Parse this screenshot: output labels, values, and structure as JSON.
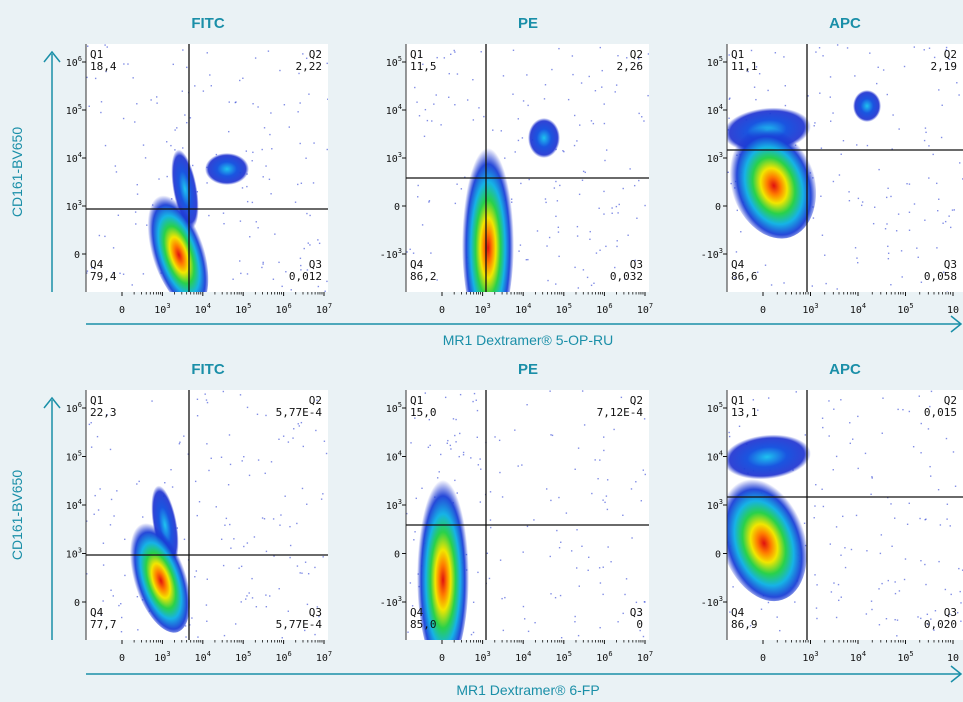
{
  "chart_data": {
    "type": "scatter",
    "rows": [
      {
        "ylabel": "CD161-BV650",
        "xlabel": "MR1 Dextramer® 5-OP-RU",
        "panels": [
          {
            "title": "FITC",
            "y_ticks": [
              {
                "base": "0",
                "exp": ""
              },
              {
                "base": "10",
                "exp": "3"
              },
              {
                "base": "10",
                "exp": "4"
              },
              {
                "base": "10",
                "exp": "5"
              },
              {
                "base": "10",
                "exp": "6"
              }
            ],
            "x_ticks": [
              {
                "base": "0",
                "exp": ""
              },
              {
                "base": "10",
                "exp": "3"
              },
              {
                "base": "10",
                "exp": "4"
              },
              {
                "base": "10",
                "exp": "5"
              },
              {
                "base": "10",
                "exp": "6"
              },
              {
                "base": "10",
                "exp": "7"
              }
            ],
            "quadrants": {
              "Q1": {
                "label": "Q1",
                "value": "18,4"
              },
              "Q2": {
                "label": "Q2",
                "value": "2,22"
              },
              "Q3": {
                "label": "Q3",
                "value": "0,012"
              },
              "Q4": {
                "label": "Q4",
                "value": "79,4"
              }
            }
          },
          {
            "title": "PE",
            "y_ticks": [
              {
                "base": "-10",
                "exp": "3"
              },
              {
                "base": "0",
                "exp": ""
              },
              {
                "base": "10",
                "exp": "3"
              },
              {
                "base": "10",
                "exp": "4"
              },
              {
                "base": "10",
                "exp": "5"
              }
            ],
            "x_ticks": [
              {
                "base": "0",
                "exp": ""
              },
              {
                "base": "10",
                "exp": "3"
              },
              {
                "base": "10",
                "exp": "4"
              },
              {
                "base": "10",
                "exp": "5"
              },
              {
                "base": "10",
                "exp": "6"
              },
              {
                "base": "10",
                "exp": "7"
              }
            ],
            "quadrants": {
              "Q1": {
                "label": "Q1",
                "value": "11,5"
              },
              "Q2": {
                "label": "Q2",
                "value": "2,26"
              },
              "Q3": {
                "label": "Q3",
                "value": "0,032"
              },
              "Q4": {
                "label": "Q4",
                "value": "86,2"
              }
            }
          },
          {
            "title": "APC",
            "y_ticks": [
              {
                "base": "-10",
                "exp": "3"
              },
              {
                "base": "0",
                "exp": ""
              },
              {
                "base": "10",
                "exp": "3"
              },
              {
                "base": "10",
                "exp": "4"
              },
              {
                "base": "10",
                "exp": "5"
              }
            ],
            "x_ticks": [
              {
                "base": "0",
                "exp": ""
              },
              {
                "base": "10",
                "exp": "3"
              },
              {
                "base": "10",
                "exp": "4"
              },
              {
                "base": "10",
                "exp": "5"
              },
              {
                "base": "10",
                "exp": ""
              }
            ],
            "quadrants": {
              "Q1": {
                "label": "Q1",
                "value": "11,1"
              },
              "Q2": {
                "label": "Q2",
                "value": "2,19"
              },
              "Q3": {
                "label": "Q3",
                "value": "0,058"
              },
              "Q4": {
                "label": "Q4",
                "value": "86,6"
              }
            }
          }
        ]
      },
      {
        "ylabel": "CD161-BV650",
        "xlabel": "MR1 Dextramer® 6-FP",
        "panels": [
          {
            "title": "FITC",
            "y_ticks": [
              {
                "base": "0",
                "exp": ""
              },
              {
                "base": "10",
                "exp": "3"
              },
              {
                "base": "10",
                "exp": "4"
              },
              {
                "base": "10",
                "exp": "5"
              },
              {
                "base": "10",
                "exp": "6"
              }
            ],
            "x_ticks": [
              {
                "base": "0",
                "exp": ""
              },
              {
                "base": "10",
                "exp": "3"
              },
              {
                "base": "10",
                "exp": "4"
              },
              {
                "base": "10",
                "exp": "5"
              },
              {
                "base": "10",
                "exp": "6"
              },
              {
                "base": "10",
                "exp": "7"
              }
            ],
            "quadrants": {
              "Q1": {
                "label": "Q1",
                "value": "22,3"
              },
              "Q2": {
                "label": "Q2",
                "value": "5,77E-4"
              },
              "Q3": {
                "label": "Q3",
                "value": "5,77E-4"
              },
              "Q4": {
                "label": "Q4",
                "value": "77,7"
              }
            }
          },
          {
            "title": "PE",
            "y_ticks": [
              {
                "base": "-10",
                "exp": "3"
              },
              {
                "base": "0",
                "exp": ""
              },
              {
                "base": "10",
                "exp": "3"
              },
              {
                "base": "10",
                "exp": "4"
              },
              {
                "base": "10",
                "exp": "5"
              }
            ],
            "x_ticks": [
              {
                "base": "0",
                "exp": ""
              },
              {
                "base": "10",
                "exp": "3"
              },
              {
                "base": "10",
                "exp": "4"
              },
              {
                "base": "10",
                "exp": "5"
              },
              {
                "base": "10",
                "exp": "6"
              },
              {
                "base": "10",
                "exp": "7"
              }
            ],
            "quadrants": {
              "Q1": {
                "label": "Q1",
                "value": "15,0"
              },
              "Q2": {
                "label": "Q2",
                "value": "7,12E-4"
              },
              "Q3": {
                "label": "Q3",
                "value": "0"
              },
              "Q4": {
                "label": "Q4",
                "value": "85,0"
              }
            }
          },
          {
            "title": "APC",
            "y_ticks": [
              {
                "base": "-10",
                "exp": "3"
              },
              {
                "base": "0",
                "exp": ""
              },
              {
                "base": "10",
                "exp": "3"
              },
              {
                "base": "10",
                "exp": "4"
              },
              {
                "base": "10",
                "exp": "5"
              }
            ],
            "x_ticks": [
              {
                "base": "0",
                "exp": ""
              },
              {
                "base": "10",
                "exp": "3"
              },
              {
                "base": "10",
                "exp": "4"
              },
              {
                "base": "10",
                "exp": "5"
              },
              {
                "base": "10",
                "exp": ""
              }
            ],
            "quadrants": {
              "Q1": {
                "label": "Q1",
                "value": "13,1"
              },
              "Q2": {
                "label": "Q2",
                "value": "0,015"
              },
              "Q3": {
                "label": "Q3",
                "value": "0,020"
              },
              "Q4": {
                "label": "Q4",
                "value": "86,9"
              }
            }
          }
        ]
      }
    ]
  },
  "colors": {
    "accent": "#1a8fa8",
    "background": "#eaf2f5",
    "panel_background": "#ffffff",
    "gate_line": "#111111"
  }
}
